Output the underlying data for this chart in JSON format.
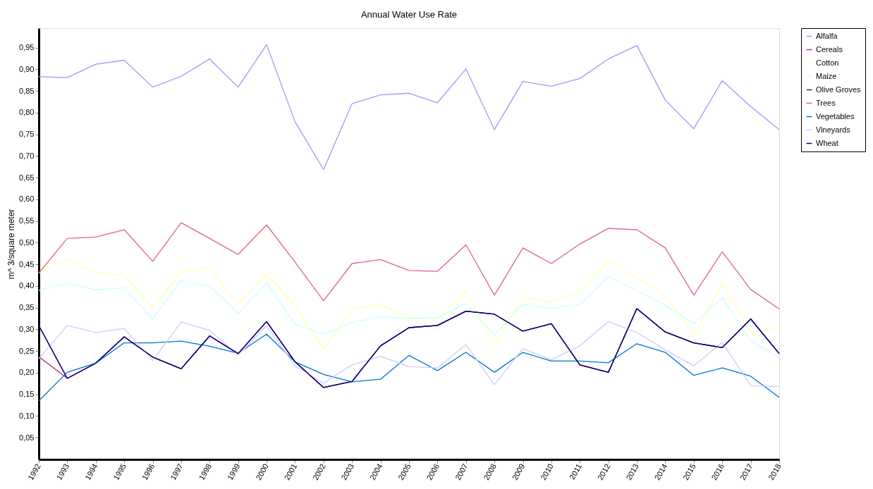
{
  "chart_data": {
    "type": "line",
    "title": "Annual Water Use Rate",
    "ylabel": "m^ 3/square meter",
    "categories": [
      "1992",
      "1993",
      "1994",
      "1995",
      "1996",
      "1997",
      "1998",
      "1999",
      "2000",
      "2001",
      "2002",
      "2003",
      "2004",
      "2005",
      "2006",
      "2007",
      "2008",
      "2009",
      "2010",
      "2011",
      "2012",
      "2013",
      "2014",
      "2015",
      "2016",
      "2017",
      "2018"
    ],
    "series": [
      {
        "name": "Alfalfa",
        "color": "#9999ff",
        "values": [
          0.883,
          0.881,
          0.912,
          0.921,
          0.859,
          0.884,
          0.924,
          0.859,
          0.957,
          0.779,
          0.669,
          0.821,
          0.841,
          0.845,
          0.823,
          0.901,
          0.761,
          0.872,
          0.861,
          0.879,
          0.924,
          0.955,
          0.829,
          0.763,
          0.874,
          0.814,
          0.761
        ]
      },
      {
        "name": "Cereals",
        "color": "#993366",
        "values": [
          0.237,
          0.187,
          0.222,
          0.283,
          0.236,
          0.209,
          0.285,
          0.244,
          0.318,
          0.225,
          0.166,
          0.18,
          0.262,
          0.304,
          0.309,
          0.342,
          0.335,
          0.296,
          0.313,
          0.218,
          0.201,
          0.348,
          0.294,
          0.269,
          0.258,
          0.324,
          0.244
        ]
      },
      {
        "name": "Cotton",
        "color": "#ffffb0",
        "values": [
          0.43,
          0.461,
          0.431,
          0.424,
          0.35,
          0.432,
          0.442,
          0.358,
          0.428,
          0.354,
          0.256,
          0.347,
          0.358,
          0.327,
          0.325,
          0.389,
          0.264,
          0.375,
          0.363,
          0.386,
          0.458,
          0.419,
          0.378,
          0.285,
          0.406,
          0.293,
          0.302
        ]
      },
      {
        "name": "Maize",
        "color": "#ccffff",
        "values": [
          0.39,
          0.407,
          0.391,
          0.396,
          0.324,
          0.413,
          0.4,
          0.337,
          0.407,
          0.312,
          0.289,
          0.316,
          0.329,
          0.325,
          0.327,
          0.36,
          0.287,
          0.358,
          0.349,
          0.358,
          0.421,
          0.389,
          0.355,
          0.314,
          0.373,
          0.273,
          0.235
        ]
      },
      {
        "name": "Olive Groves",
        "color": "#660066",
        "values": [
          0.309,
          0.187,
          0.222,
          0.283,
          0.236,
          0.209,
          0.285,
          0.244,
          0.318,
          0.225,
          0.166,
          0.18,
          0.262,
          0.304,
          0.309,
          0.342,
          0.335,
          0.296,
          0.313,
          0.218,
          0.201,
          0.348,
          0.294,
          0.269,
          0.258,
          0.324,
          0.244
        ]
      },
      {
        "name": "Trees",
        "color": "#e06676",
        "values": [
          0.43,
          0.51,
          0.513,
          0.53,
          0.457,
          0.546,
          0.51,
          0.473,
          0.541,
          0.455,
          0.366,
          0.452,
          0.461,
          0.436,
          0.434,
          0.495,
          0.379,
          0.488,
          0.452,
          0.497,
          0.533,
          0.53,
          0.488,
          0.379,
          0.479,
          0.392,
          0.347
        ]
      },
      {
        "name": "Vegetables",
        "color": "#0070d0",
        "values": [
          0.135,
          0.201,
          0.222,
          0.269,
          0.269,
          0.273,
          0.261,
          0.245,
          0.289,
          0.225,
          0.196,
          0.179,
          0.185,
          0.24,
          0.205,
          0.247,
          0.201,
          0.247,
          0.227,
          0.227,
          0.223,
          0.267,
          0.247,
          0.194,
          0.211,
          0.192,
          0.143
        ]
      },
      {
        "name": "Vineyards",
        "color": "#ccccff",
        "values": [
          0.232,
          0.309,
          0.293,
          0.302,
          0.228,
          0.317,
          0.298,
          0.241,
          0.308,
          0.216,
          0.176,
          0.218,
          0.238,
          0.214,
          0.211,
          0.265,
          0.172,
          0.256,
          0.23,
          0.262,
          0.318,
          0.293,
          0.253,
          0.216,
          0.27,
          0.17,
          0.168
        ]
      },
      {
        "name": "Wheat",
        "color": "#000080",
        "values": [
          0.309,
          0.187,
          0.222,
          0.283,
          0.236,
          0.209,
          0.285,
          0.244,
          0.318,
          0.225,
          0.166,
          0.18,
          0.262,
          0.304,
          0.309,
          0.342,
          0.335,
          0.296,
          0.313,
          0.218,
          0.201,
          0.348,
          0.294,
          0.269,
          0.258,
          0.324,
          0.244
        ]
      }
    ],
    "ylim": [
      0,
      0.995
    ],
    "yticks": [
      {
        "value": 0.05,
        "label": "0,05"
      },
      {
        "value": 0.1,
        "label": "0,10"
      },
      {
        "value": 0.15,
        "label": "0,15"
      },
      {
        "value": 0.2,
        "label": "0,20"
      },
      {
        "value": 0.25,
        "label": "0,25"
      },
      {
        "value": 0.3,
        "label": "0,30"
      },
      {
        "value": 0.35,
        "label": "0,35"
      },
      {
        "value": 0.4,
        "label": "0,40"
      },
      {
        "value": 0.45,
        "label": "0,45"
      },
      {
        "value": 0.5,
        "label": "0,50"
      },
      {
        "value": 0.55,
        "label": "0,55"
      },
      {
        "value": 0.6,
        "label": "0,60"
      },
      {
        "value": 0.65,
        "label": "0,65"
      },
      {
        "value": 0.7,
        "label": "0,70"
      },
      {
        "value": 0.75,
        "label": "0,75"
      },
      {
        "value": 0.8,
        "label": "0,80"
      },
      {
        "value": 0.85,
        "label": "0,85"
      },
      {
        "value": 0.9,
        "label": "0,90"
      },
      {
        "value": 0.95,
        "label": "0,95"
      }
    ],
    "grid": false,
    "legend": "top right",
    "marker": "none",
    "line_style": "solid"
  }
}
